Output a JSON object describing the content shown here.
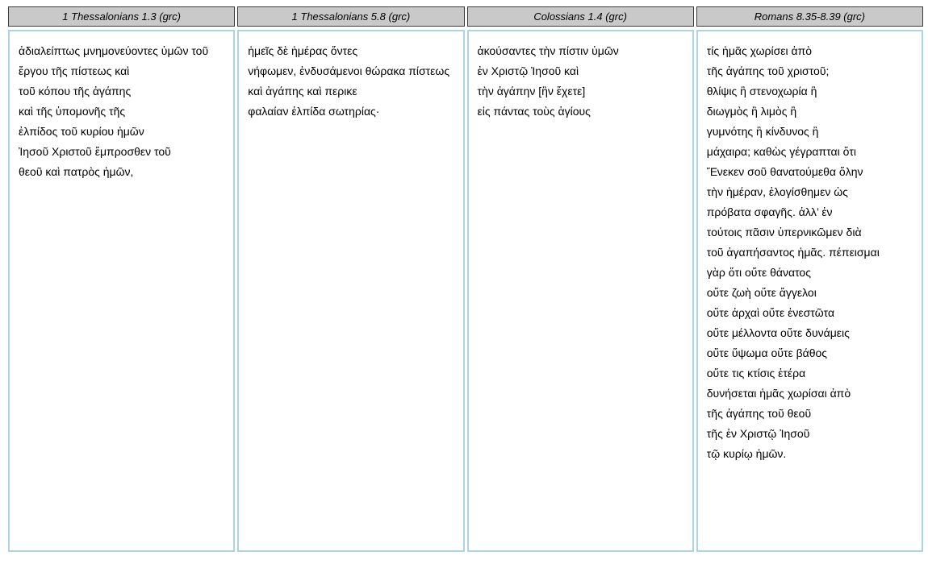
{
  "colors": {
    "header_bg": "#c9c9c9",
    "header_border": "#3c3c3c",
    "body_border": "#abd5e7",
    "text": "#000000",
    "page_bg": "#ffffff"
  },
  "table": {
    "columns": [
      {
        "header": "1 Thessalonians 1.3 (grc)",
        "lines": [
          "ἀδιαλείπτως μνημονεύοντες ὑμῶν τοῦ",
          "ἔργου τῆς πίστεως καὶ",
          "τοῦ κόπου τῆς ἀγάπης",
          "καὶ τῆς ὑπομονῆς τῆς",
          "ἐλπίδος τοῦ κυρίου ἡμῶν",
          "Ἰησοῦ Χριστοῦ ἔμπροσθεν τοῦ",
          "θεοῦ καὶ πατρὸς ἡμῶν,"
        ]
      },
      {
        "header": "1 Thessalonians 5.8 (grc)",
        "lines": [
          "ἡμεῖς δὲ ἡμέρας ὄντες",
          "νήφωμεν, ἐνδυσάμενοι θώρακα πίστεως",
          "καὶ ἀγάπης καὶ περικε",
          "φαλαίαν ἐλπίδα σωτηρίας·"
        ]
      },
      {
        "header": "Colossians 1.4 (grc)",
        "lines": [
          "ἀκούσαντες τὴν πίστιν ὑμῶν",
          "ἐν Χριστῷ Ἰησοῦ καὶ",
          "τὴν ἀγάπην [ἣν ἔχετε]",
          "εἰς πάντας τοὺς ἁγίους"
        ]
      },
      {
        "header": "Romans 8.35-8.39 (grc)",
        "lines": [
          "τίς ἡμᾶς χωρίσει ἀπὸ",
          "τῆς ἀγάπης τοῦ χριστοῦ;",
          "θλίψις ἢ στενοχωρία ἢ",
          "διωγμὸς ἢ λιμὸς ἢ",
          "γυμνότης ἢ κίνδυνος ἢ",
          "μάχαιρα; καθὼς γέγραπται ὅτι",
          "Ἕνεκεν σοῦ θανατούμεθα ὅλην",
          "τὴν ἡμέραν, ἐλογίσθημεν ὡς",
          "πρόβατα σφαγῆς. ἀλλ’ ἐν",
          "τούτοις πᾶσιν ὑπερνικῶμεν διὰ",
          "τοῦ ἀγαπήσαντος ἡμᾶς. πέπεισμαι",
          "γὰρ ὅτι οὔτε θάνατος",
          "οὔτε ζωὴ οὔτε ἄγγελοι",
          "οὔτε ἀρχαὶ οὔτε ἐνεστῶτα",
          "οὔτε μέλλοντα οὔτε δυνάμεις",
          "οὔτε ὕψωμα οὔτε βάθος",
          "οὔτε τις κτίσις ἑτέρα",
          "δυνήσεται ἡμᾶς χωρίσαι ἀπὸ",
          "τῆς ἀγάπης τοῦ θεοῦ",
          "τῆς ἐν Χριστῷ Ἰησοῦ",
          "τῷ κυρίῳ ἡμῶν."
        ]
      }
    ]
  }
}
